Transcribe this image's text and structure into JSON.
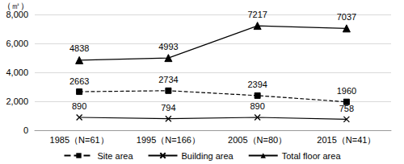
{
  "chart_data": {
    "type": "line",
    "ylabel": "（㎡）",
    "categories": [
      "1985（N=61）",
      "1995（N=166）",
      "2005（N=80）",
      "2015（N=41）"
    ],
    "series": [
      {
        "name": "Site area",
        "color": "#000000",
        "marker": "square",
        "line_style": "dashed",
        "values": [
          2663,
          2734,
          2394,
          1960
        ]
      },
      {
        "name": "Building area",
        "color": "#000000",
        "marker": "x",
        "line_style": "solid",
        "values": [
          890,
          794,
          890,
          758
        ]
      },
      {
        "name": "Total floor area",
        "color": "#000000",
        "marker": "triangle",
        "line_style": "solid",
        "values": [
          4838,
          4993,
          7217,
          7037
        ]
      }
    ],
    "ylim": [
      0,
      8000
    ],
    "yticks": [
      0,
      2000,
      4000,
      6000,
      8000
    ],
    "grid": true,
    "data_labels": true,
    "legend": "bottom"
  }
}
